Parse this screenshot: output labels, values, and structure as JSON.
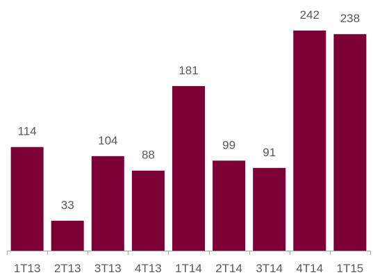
{
  "chart_data": {
    "type": "bar",
    "categories": [
      "1T13",
      "2T13",
      "3T13",
      "4T13",
      "1T14",
      "2T14",
      "3T14",
      "4T14",
      "1T15"
    ],
    "values": [
      114,
      33,
      104,
      88,
      181,
      99,
      91,
      242,
      238
    ],
    "title": "",
    "xlabel": "",
    "ylabel": "",
    "ylim": [
      0,
      250
    ],
    "grid": false,
    "legend": "none",
    "bar_color": "#7a0036",
    "axis_color": "#a6a6a6",
    "label_color": "#595959"
  }
}
